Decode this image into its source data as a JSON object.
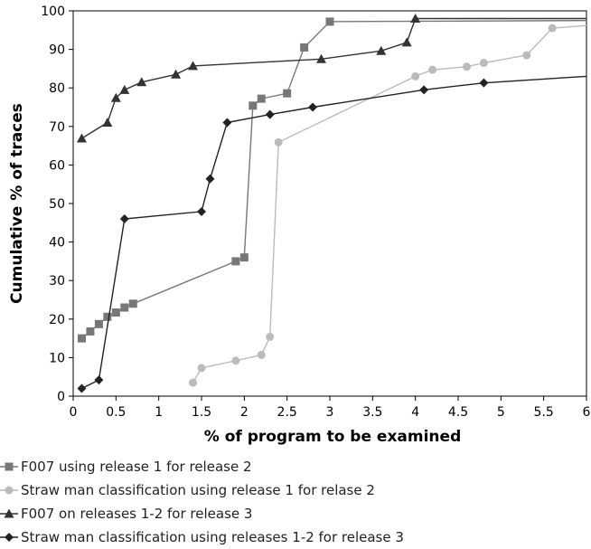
{
  "chart_data": {
    "type": "line",
    "title": "",
    "xlabel": "% of program to be examined",
    "ylabel": "Cumulative % of traces",
    "xlim": [
      0,
      6
    ],
    "ylim": [
      0,
      100
    ],
    "xticks": [
      "0",
      "0.5",
      "1",
      "1.5",
      "2",
      "2.5",
      "3",
      "3.5",
      "4",
      "4.5",
      "5",
      "5.5",
      "6"
    ],
    "yticks": [
      "0",
      "10",
      "20",
      "30",
      "40",
      "50",
      "60",
      "70",
      "80",
      "90",
      "100"
    ],
    "grid": false,
    "legend_position": "bottom",
    "series": [
      {
        "name": "F007 using release 1 for release 2",
        "color": "#777777",
        "marker": "square",
        "x": [
          0.1,
          0.2,
          0.3,
          0.4,
          0.5,
          0.6,
          0.7,
          1.9,
          2.0,
          2.1,
          2.2,
          2.5,
          2.7,
          3.0,
          6.0
        ],
        "y": [
          15,
          16.8,
          18.7,
          20.6,
          21.7,
          23,
          24,
          35,
          36,
          75.4,
          77.2,
          78.6,
          90.5,
          97.2,
          97.5
        ],
        "marker_count": 14
      },
      {
        "name": "Straw man classification using release 1 for relase 2",
        "color": "#bbbbbb",
        "marker": "circle",
        "x": [
          1.4,
          1.5,
          1.9,
          2.2,
          2.3,
          2.4,
          4.0,
          4.2,
          4.6,
          4.8,
          5.3,
          5.6,
          6.0
        ],
        "y": [
          3.5,
          7.3,
          9.2,
          10.7,
          15.4,
          65.9,
          83,
          84.7,
          85.5,
          86.5,
          88.5,
          95.5,
          96.2
        ],
        "marker_count": 12
      },
      {
        "name": "F007 on releases 1-2 for release 3",
        "color": "#333333",
        "marker": "triangle",
        "x": [
          0.1,
          0.4,
          0.5,
          0.6,
          0.8,
          1.2,
          1.4,
          2.9,
          3.6,
          3.9,
          4.0,
          6.0
        ],
        "y": [
          66.9,
          71,
          77.4,
          79.5,
          81.5,
          83.5,
          85.7,
          87.5,
          89.6,
          91.8,
          98,
          98
        ],
        "marker_count": 11
      },
      {
        "name": "Straw man classification using releases 1-2 for release 3",
        "color": "#222222",
        "marker": "diamond",
        "x": [
          0.1,
          0.3,
          0.6,
          1.5,
          1.6,
          1.8,
          2.3,
          2.8,
          4.1,
          4.8,
          6.0
        ],
        "y": [
          2,
          4.2,
          46,
          47.9,
          56.4,
          71,
          73.1,
          75,
          79.5,
          81.3,
          83
        ],
        "marker_count": 10
      }
    ]
  }
}
